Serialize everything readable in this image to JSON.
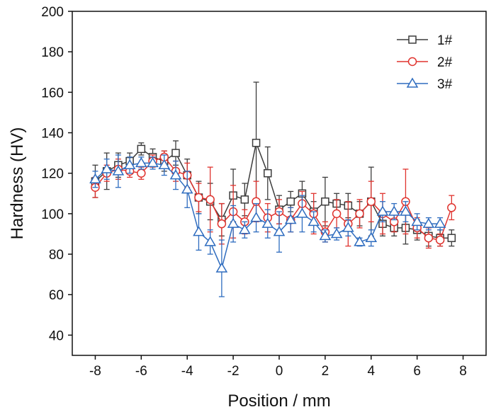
{
  "chart_data": {
    "type": "line",
    "xlabel": "Position / mm",
    "ylabel": "Hardness (HV)",
    "xlim": [
      -9,
      9
    ],
    "ylim": [
      30,
      200
    ],
    "xticks": [
      -8,
      -6,
      -4,
      -2,
      0,
      2,
      4,
      6,
      8
    ],
    "yticks": [
      40,
      60,
      80,
      100,
      120,
      140,
      160,
      180,
      200
    ],
    "xtick_labels": [
      "-8",
      "-6",
      "-4",
      "-2",
      "0",
      "2",
      "4",
      "6",
      "8"
    ],
    "ytick_labels": [
      "40",
      "60",
      "80",
      "100",
      "120",
      "140",
      "160",
      "180",
      "200"
    ],
    "legend_position": "top-right",
    "series": [
      {
        "name": "1#",
        "color": "#3c3c3c",
        "marker": "square",
        "x": [
          -8,
          -7.5,
          -7,
          -6.5,
          -6,
          -5.5,
          -5,
          -4.5,
          -4,
          -3.5,
          -3,
          -2.5,
          -2,
          -1.5,
          -1,
          -0.5,
          0,
          0.5,
          1,
          1.5,
          2,
          2.5,
          3,
          3.5,
          4,
          4.5,
          5,
          5.5,
          6,
          6.5,
          7,
          7.5
        ],
        "y": [
          116,
          121,
          124,
          126,
          132,
          128,
          126,
          130,
          119,
          108,
          106,
          97,
          109,
          107,
          135,
          120,
          102,
          106,
          110,
          101,
          106,
          105,
          104,
          100,
          106,
          95,
          93,
          93,
          92,
          89,
          88,
          88
        ],
        "err": [
          8,
          9,
          6,
          4,
          3,
          4,
          5,
          6,
          8,
          8,
          9,
          8,
          13,
          8,
          30,
          13,
          7,
          5,
          6,
          5,
          12,
          5,
          6,
          6,
          17,
          6,
          4,
          8,
          5,
          5,
          4,
          4
        ]
      },
      {
        "name": "2#",
        "color": "#e0332e",
        "marker": "circle",
        "x": [
          -8,
          -7.5,
          -7,
          -6.5,
          -6,
          -5.5,
          -5,
          -4.5,
          -4,
          -3.5,
          -3,
          -2.5,
          -2,
          -1.5,
          -1,
          -0.5,
          0,
          0.5,
          1,
          1.5,
          2,
          2.5,
          3,
          3.5,
          4,
          4.5,
          5,
          5.5,
          6,
          6.5,
          7,
          7.5
        ],
        "y": [
          113,
          120,
          122,
          121,
          120,
          126,
          128,
          121,
          119,
          108,
          107,
          95,
          101,
          96,
          106,
          98,
          101,
          97,
          105,
          100,
          91,
          100,
          95,
          100,
          106,
          100,
          96,
          106,
          93,
          88,
          87,
          103
        ],
        "err": [
          5,
          4,
          5,
          3,
          3,
          3,
          3,
          5,
          6,
          7,
          16,
          10,
          13,
          6,
          10,
          7,
          6,
          6,
          6,
          10,
          5,
          7,
          11,
          7,
          10,
          10,
          5,
          16,
          5,
          5,
          3,
          6
        ]
      },
      {
        "name": "3#",
        "color": "#2e6cbf",
        "marker": "triangle",
        "x": [
          -8,
          -7.5,
          -7,
          -6.5,
          -6,
          -5.5,
          -5,
          -4.5,
          -4,
          -3.5,
          -3,
          -2.5,
          -2,
          -1.5,
          -1,
          -0.5,
          0,
          0.5,
          1,
          1.5,
          2,
          2.5,
          3,
          3.5,
          4,
          4.5,
          5,
          5.5,
          6,
          6.5,
          7,
          7.5
        ],
        "y": [
          117,
          122,
          121,
          124,
          125,
          125,
          124,
          119,
          112,
          91,
          86,
          73,
          95,
          92,
          98,
          95,
          91,
          97,
          100,
          96,
          89,
          90,
          93,
          86,
          88,
          101,
          101,
          101,
          96,
          95,
          95,
          null
        ],
        "err": [
          4,
          5,
          8,
          4,
          3,
          3,
          5,
          7,
          9,
          9,
          6,
          14,
          9,
          4,
          7,
          7,
          10,
          6,
          9,
          5,
          3,
          3,
          4,
          2,
          4,
          5,
          4,
          5,
          4,
          3,
          3,
          0
        ]
      }
    ]
  }
}
